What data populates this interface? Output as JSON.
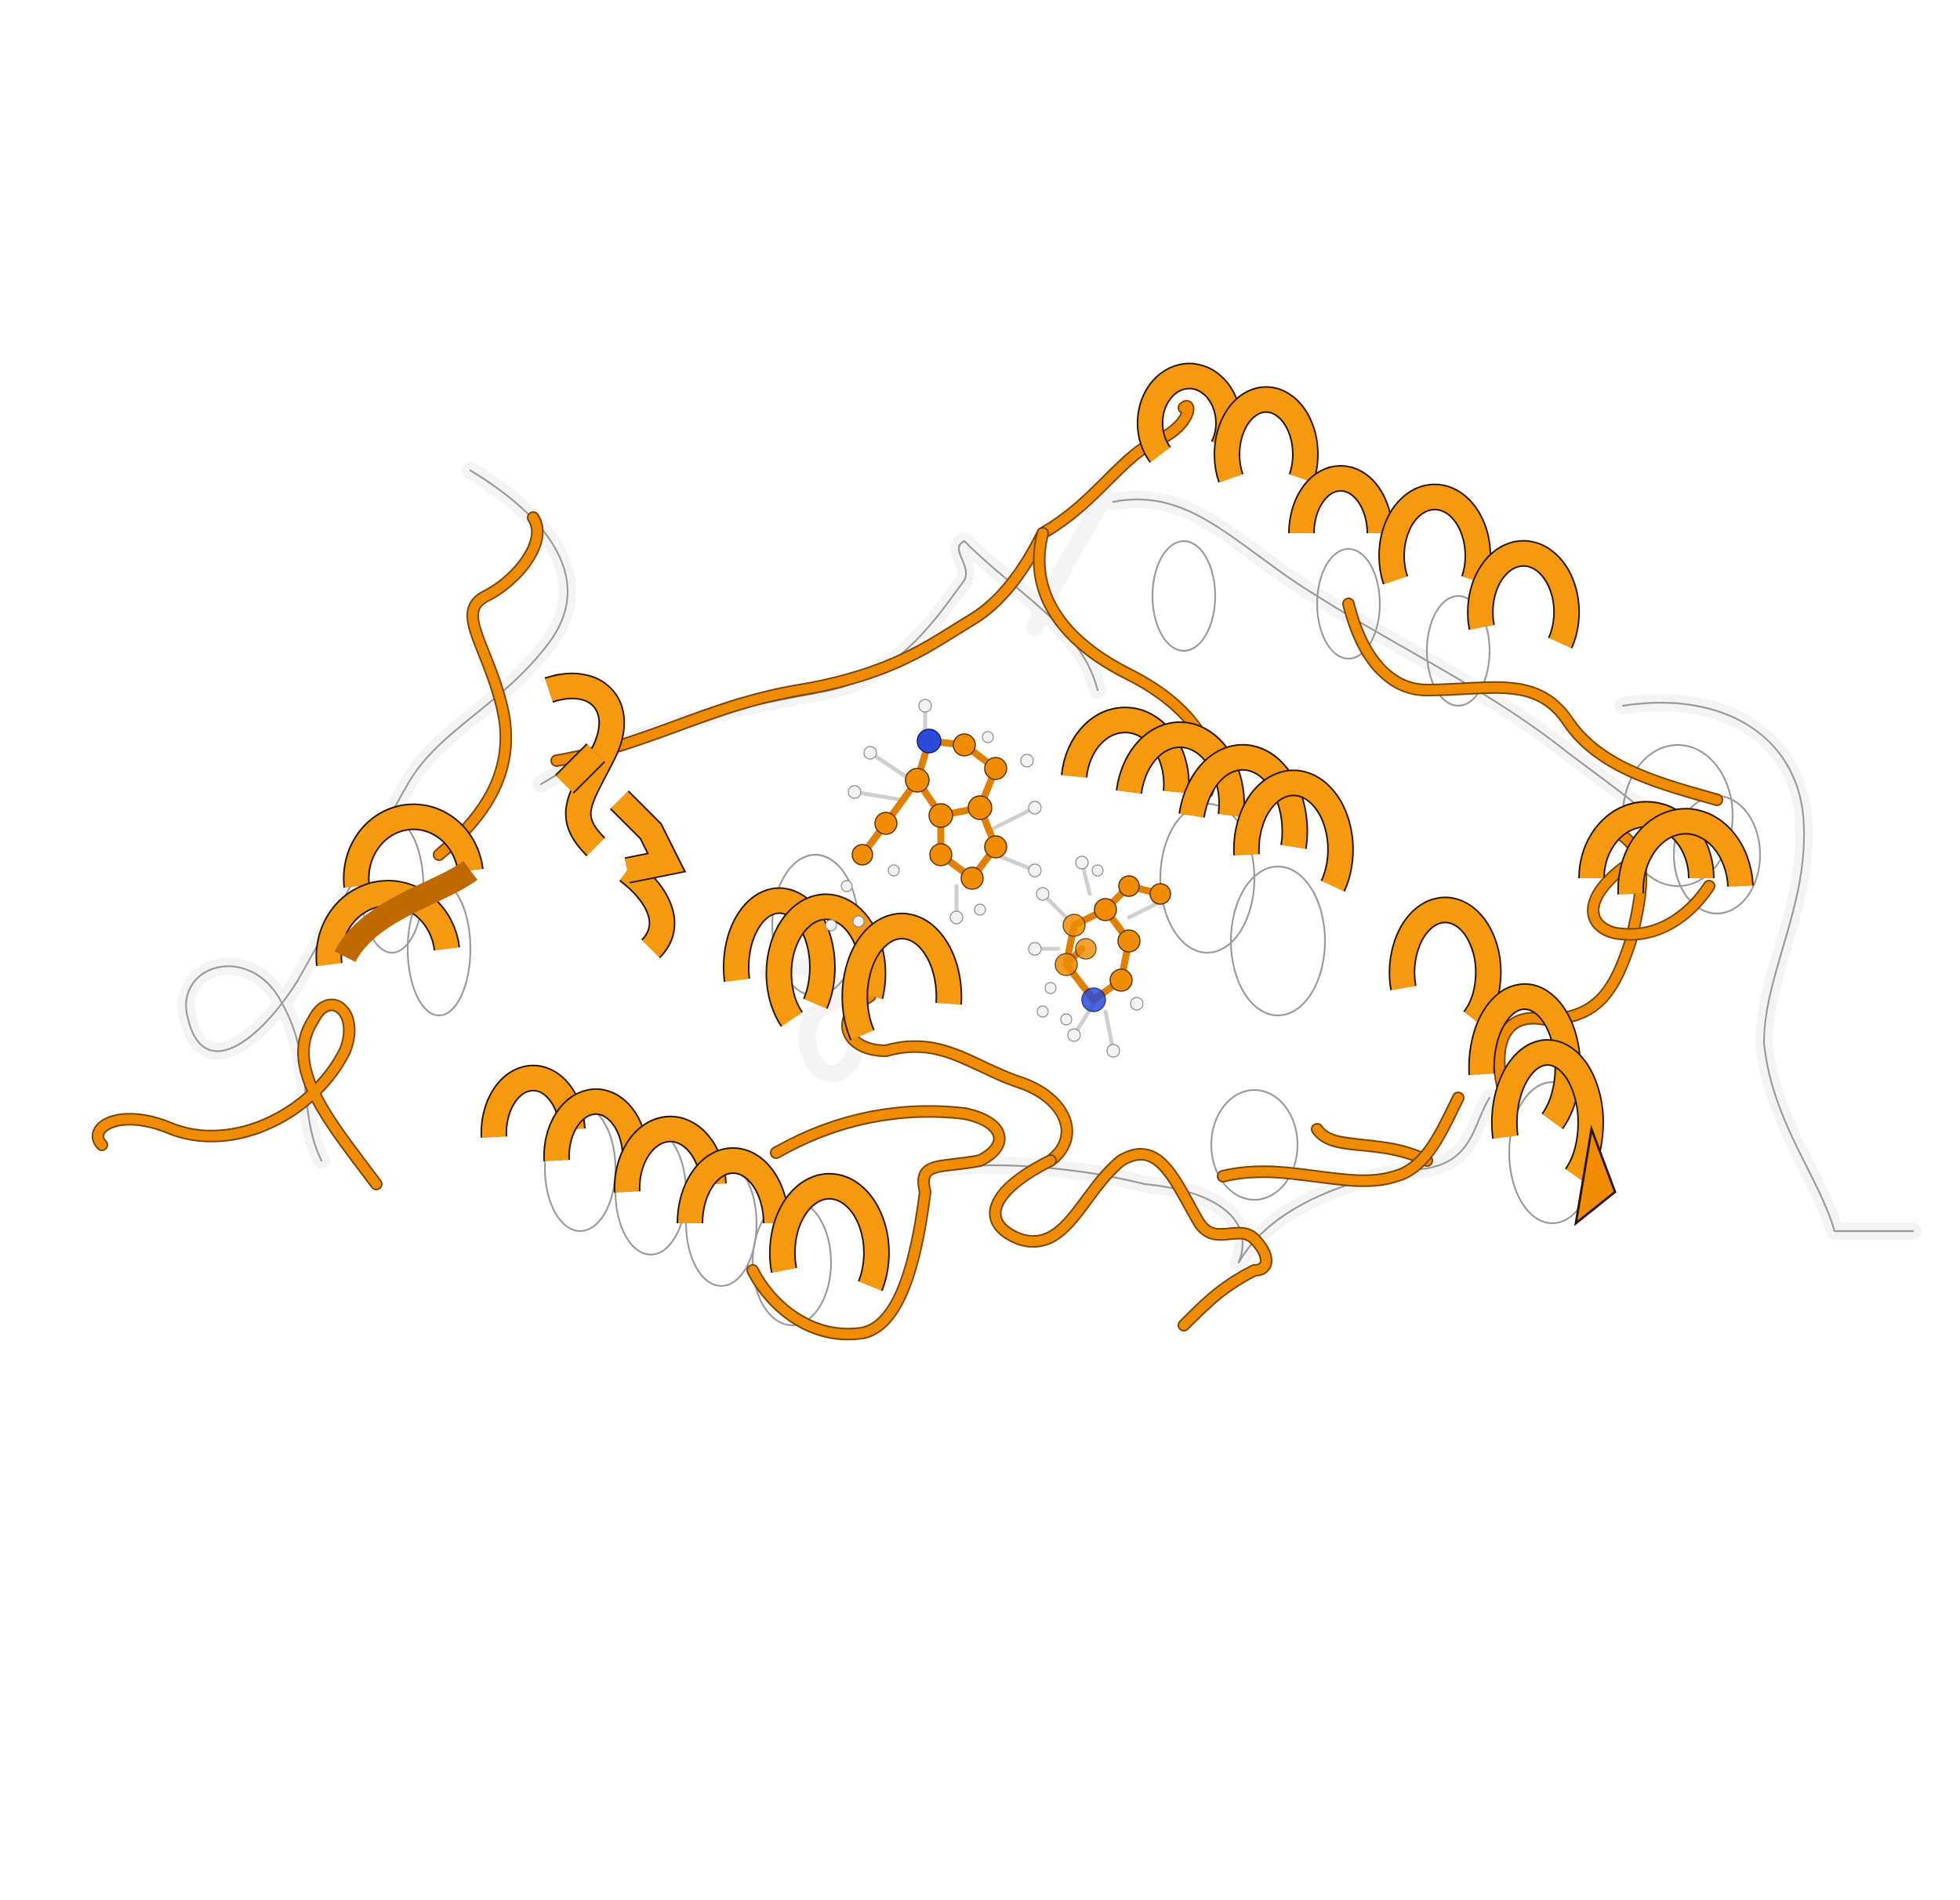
{
  "figure": {
    "subject": "protein-structure-superposition",
    "colors": {
      "model": "#f08c00",
      "reference": "#f4f4f4",
      "nitrogen": "#2b4bd8",
      "hydrogen": "#f2f2f2",
      "background": "#ffffff"
    }
  }
}
